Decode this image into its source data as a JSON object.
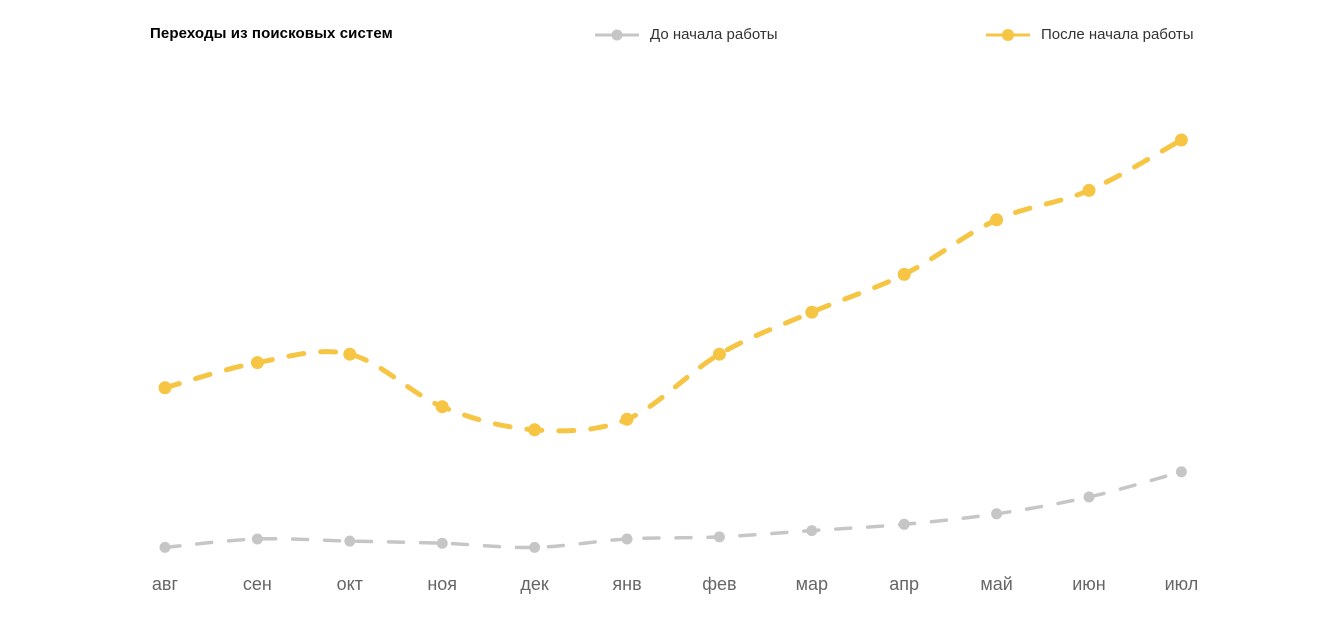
{
  "header": {
    "title": "Переходы из поисковых систем"
  },
  "chart_data": {
    "type": "line",
    "title": "Переходы из поисковых систем",
    "categories": [
      "авг",
      "сен",
      "окт",
      "ноя",
      "дек",
      "янв",
      "фев",
      "мар",
      "апр",
      "май",
      "июн",
      "июл"
    ],
    "series": [
      {
        "name": "До начала работы",
        "color": "#c6c6c6",
        "values": [
          3,
          5,
          4.5,
          4,
          3,
          5,
          5.5,
          7,
          8.5,
          11,
          15,
          21
        ]
      },
      {
        "name": "После начала работы",
        "color": "#f6c544",
        "values": [
          41,
          47,
          49,
          36.5,
          31,
          33.5,
          49,
          59,
          68,
          81,
          88,
          100
        ]
      }
    ],
    "xlabel": "",
    "ylabel": "",
    "ylim": [
      0,
      110
    ],
    "grid": false,
    "axes_visible": false,
    "legend_position": "top",
    "line_style": "dashed",
    "smooth": true,
    "markers": "circle",
    "x_label_color": "#666666",
    "background": "#ffffff"
  }
}
